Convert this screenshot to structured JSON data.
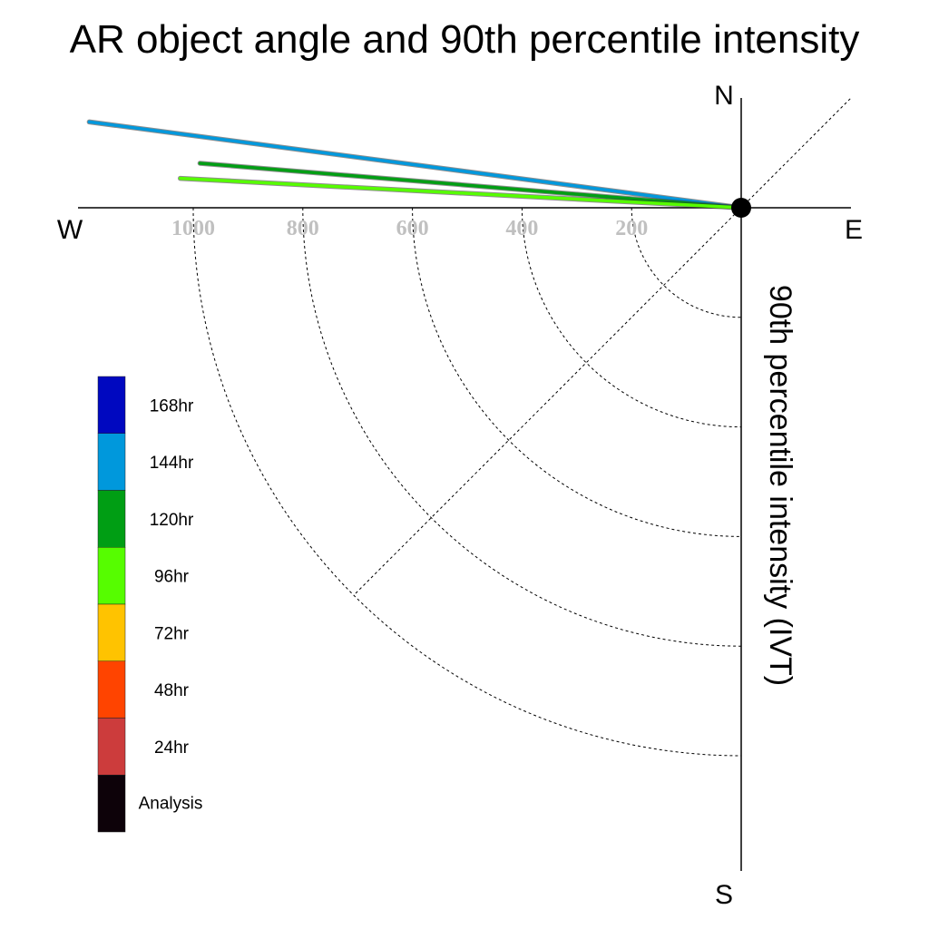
{
  "chart_data": {
    "type": "polar-vector",
    "title": "AR object angle and 90th percentile intensity",
    "axis_label": "90th percentile intensity (IVT)",
    "compass": {
      "north": "N",
      "south": "S",
      "east": "E",
      "west": "W"
    },
    "rings": [
      200,
      400,
      600,
      800,
      1000
    ],
    "ring_labels": [
      "200",
      "400",
      "600",
      "800",
      "1000"
    ],
    "radial_max": 1200,
    "diagonal_guide_deg": 45,
    "legend": [
      {
        "label": "168hr",
        "color": "#0008c0"
      },
      {
        "label": "144hr",
        "color": "#0098dc"
      },
      {
        "label": "120hr",
        "color": "#009e14"
      },
      {
        "label": "96hr",
        "color": "#56fd00"
      },
      {
        "label": "72hr",
        "color": "#ffc300"
      },
      {
        "label": "48hr",
        "color": "#ff4400"
      },
      {
        "label": "24hr",
        "color": "#cc3c3c"
      },
      {
        "label": "Analysis",
        "color": "#0d0209"
      }
    ],
    "series": [
      {
        "lead": "144hr",
        "color": "#0098dc",
        "angle_deg": 172.5,
        "intensity": 1200
      },
      {
        "lead": "120hr",
        "color": "#009e14",
        "angle_deg": 175.3,
        "intensity": 991
      },
      {
        "lead": "96hr",
        "color": "#56fd00",
        "angle_deg": 177.0,
        "intensity": 1025
      }
    ]
  }
}
